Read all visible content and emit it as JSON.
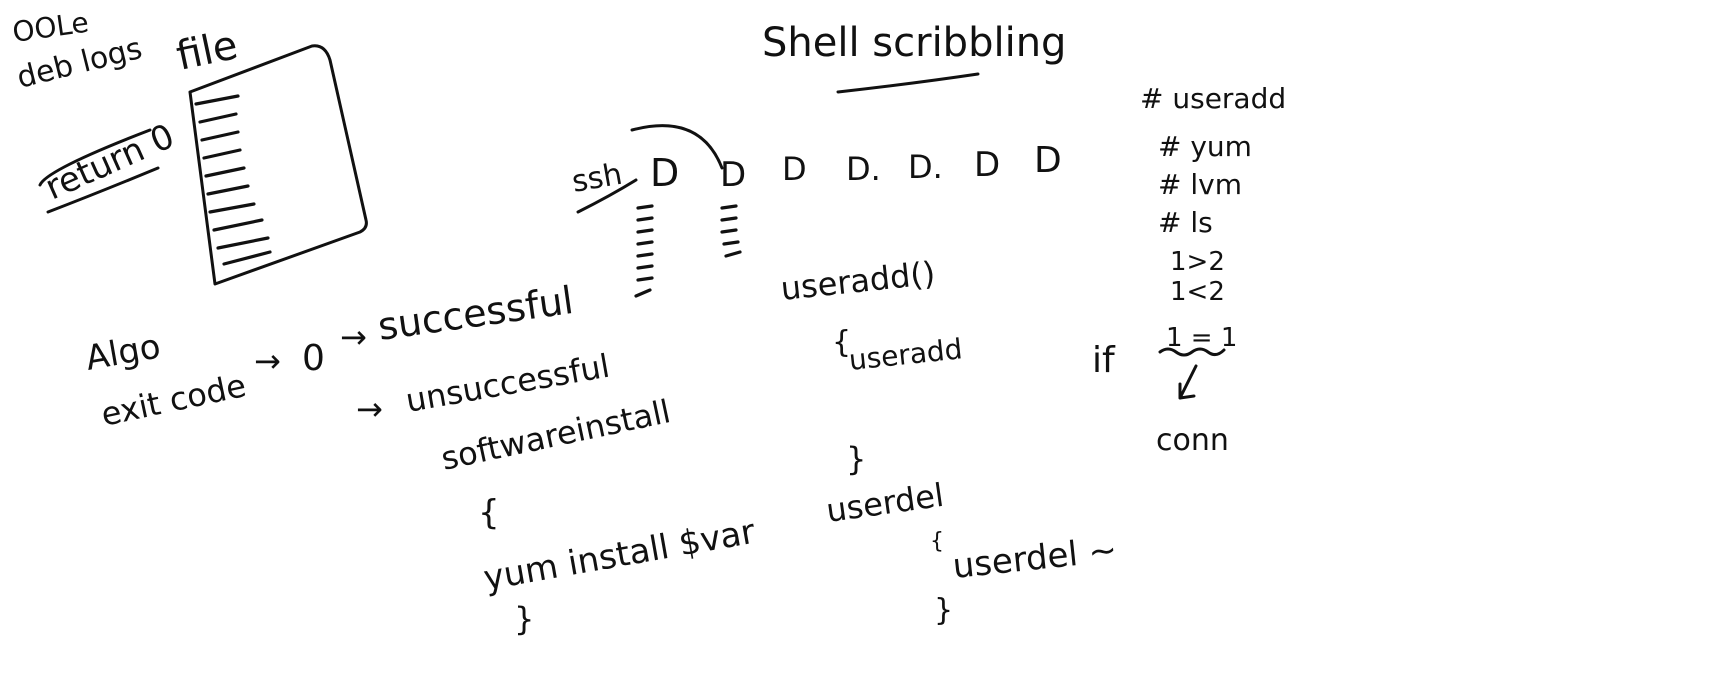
{
  "board": {
    "title": "Shell scribbling",
    "top_left": {
      "line1": "OOLe",
      "line2": "deb logs",
      "file": "file",
      "return_label": "return 0"
    },
    "servers": {
      "ssh": "ssh",
      "d_labels": [
        "D",
        "D",
        "D",
        "D.",
        "D.",
        "D",
        "D"
      ]
    },
    "algo": {
      "label": "Algo",
      "exit_code": "exit code",
      "arrow1": "→",
      "zero": "0",
      "arrow2": "→",
      "successful": "successful",
      "arrow3": "→",
      "unsuccessful": "unsuccessful"
    },
    "software_install": {
      "name": "softwareinstall",
      "open_brace": "{",
      "body": "yum install $var",
      "close_brace": "}"
    },
    "useradd_func": {
      "name": "useradd()",
      "open_brace": "{",
      "body": "useradd",
      "close_brace": "}"
    },
    "userdel_func": {
      "name": "userdel",
      "open_brace": "{",
      "body": "userdel ~",
      "close_brace": "}"
    },
    "commands": [
      "# useradd",
      "# yum",
      "# lvm",
      "# ls",
      "1>2",
      "1<2"
    ],
    "if_block": {
      "keyword": "if",
      "condition": "1 = 1",
      "result": "conn"
    }
  }
}
